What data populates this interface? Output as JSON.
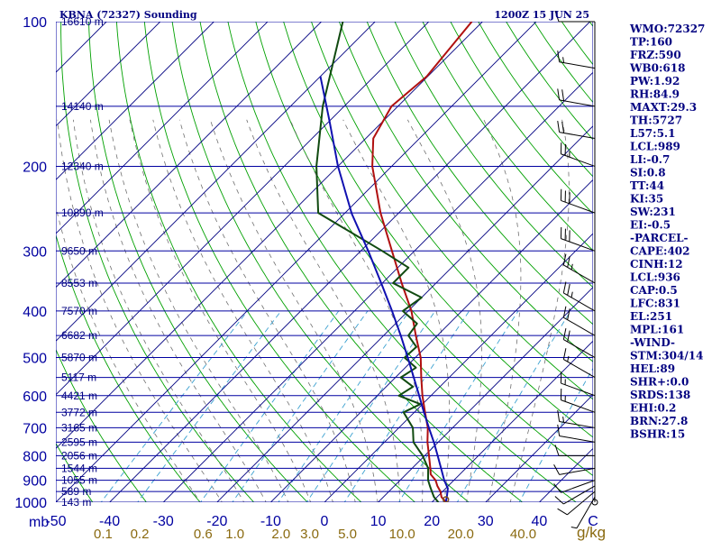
{
  "chart_data": {
    "type": "line",
    "title": "KBNA (72327) Sounding",
    "timestamp": "1200Z 15 JUN 25",
    "pressure_unit": "mb",
    "mixing_ratio_unit": "g/kg",
    "pressure_levels": [
      100,
      200,
      300,
      400,
      500,
      600,
      700,
      800,
      900,
      1000
    ],
    "height_labels": [
      {
        "p": 100,
        "label": "16610 m"
      },
      {
        "p": 150,
        "label": "14140 m"
      },
      {
        "p": 200,
        "label": "12340 m"
      },
      {
        "p": 250,
        "label": "10890 m"
      },
      {
        "p": 300,
        "label": "9650 m"
      },
      {
        "p": 350,
        "label": "8553 m"
      },
      {
        "p": 400,
        "label": "7570 m"
      },
      {
        "p": 450,
        "label": "6682 m"
      },
      {
        "p": 500,
        "label": "5870 m"
      },
      {
        "p": 550,
        "label": "5117 m"
      },
      {
        "p": 600,
        "label": "4421 m"
      },
      {
        "p": 650,
        "label": "3772 m"
      },
      {
        "p": 700,
        "label": "3165 m"
      },
      {
        "p": 750,
        "label": "2595 m"
      },
      {
        "p": 800,
        "label": "2056 m"
      },
      {
        "p": 850,
        "label": "1544 m"
      },
      {
        "p": 900,
        "label": "1055 m"
      },
      {
        "p": 950,
        "label": "589 m"
      },
      {
        "p": 1000,
        "label": "143 m"
      }
    ],
    "temperature_ticks": [
      -50,
      -40,
      -30,
      -20,
      -10,
      0,
      10,
      20,
      30,
      40,
      50
    ],
    "temperature_tick_labels": [
      "-50",
      "-40",
      "-30",
      "-20",
      "-10",
      "0",
      "10",
      "20",
      "30",
      "40",
      "C"
    ],
    "mixing_ratio_labels": [
      "0.1",
      "0.2",
      "0.6",
      "1.0",
      "2.0",
      "3.0",
      "5.0",
      "10.0",
      "20.0",
      "40.0"
    ],
    "xlim": [
      -50,
      50
    ],
    "ylim": [
      1000,
      100
    ],
    "y_scale": "log",
    "skew": true,
    "series": [
      {
        "id": "temperature",
        "color": "#b01010",
        "points": [
          [
            1000,
            22.6
          ],
          [
            975,
            20.8
          ],
          [
            950,
            19.6
          ],
          [
            925,
            18.0
          ],
          [
            900,
            16.6
          ],
          [
            875,
            14.6
          ],
          [
            850,
            13.4
          ],
          [
            800,
            10.8
          ],
          [
            750,
            8.0
          ],
          [
            700,
            5.4
          ],
          [
            650,
            2.0
          ],
          [
            600,
            -1.6
          ],
          [
            550,
            -5.2
          ],
          [
            500,
            -9.0
          ],
          [
            450,
            -14.0
          ],
          [
            400,
            -19.4
          ],
          [
            350,
            -26.4
          ],
          [
            300,
            -34.2
          ],
          [
            250,
            -43.4
          ],
          [
            200,
            -53.6
          ],
          [
            175,
            -58.6
          ],
          [
            150,
            -61.2
          ],
          [
            130,
            -60.2
          ],
          [
            100,
            -62.0
          ]
        ]
      },
      {
        "id": "dewpoint",
        "color": "#104a10",
        "points": [
          [
            1000,
            21.2
          ],
          [
            975,
            19.4
          ],
          [
            950,
            18.0
          ],
          [
            925,
            16.6
          ],
          [
            900,
            15.2
          ],
          [
            850,
            13.0
          ],
          [
            800,
            9.6
          ],
          [
            750,
            5.4
          ],
          [
            700,
            2.6
          ],
          [
            650,
            -2.0
          ],
          [
            625,
            -0.4
          ],
          [
            600,
            -6.0
          ],
          [
            575,
            -5.0
          ],
          [
            550,
            -9.0
          ],
          [
            525,
            -8.0
          ],
          [
            500,
            -12.0
          ],
          [
            475,
            -11.8
          ],
          [
            450,
            -15.4
          ],
          [
            425,
            -16.0
          ],
          [
            400,
            -21.0
          ],
          [
            375,
            -20.0
          ],
          [
            350,
            -28.0
          ],
          [
            325,
            -28.0
          ],
          [
            300,
            -36.0
          ],
          [
            250,
            -55.0
          ],
          [
            200,
            -64.0
          ],
          [
            150,
            -74.0
          ],
          [
            100,
            -86.0
          ]
        ]
      },
      {
        "id": "parcel",
        "color": "#1010b0",
        "points": [
          [
            1000,
            22.6
          ],
          [
            975,
            21.8
          ],
          [
            936,
            20.4
          ],
          [
            900,
            18.2
          ],
          [
            850,
            15.4
          ],
          [
            800,
            12.4
          ],
          [
            750,
            9.2
          ],
          [
            700,
            5.6
          ],
          [
            650,
            1.8
          ],
          [
            600,
            -2.2
          ],
          [
            550,
            -6.6
          ],
          [
            500,
            -11.4
          ],
          [
            450,
            -16.8
          ],
          [
            400,
            -23.0
          ],
          [
            350,
            -30.2
          ],
          [
            300,
            -38.6
          ],
          [
            251,
            -48.6
          ],
          [
            200,
            -60.0
          ],
          [
            161,
            -70.0
          ],
          [
            130,
            -80.0
          ]
        ]
      }
    ],
    "wind_barbs": [
      {
        "p": 1000,
        "dir": 180,
        "spd": 0
      },
      {
        "p": 975,
        "dir": 210,
        "spd": 5
      },
      {
        "p": 950,
        "dir": 230,
        "spd": 10
      },
      {
        "p": 925,
        "dir": 240,
        "spd": 10
      },
      {
        "p": 900,
        "dir": 250,
        "spd": 10
      },
      {
        "p": 850,
        "dir": 260,
        "spd": 10
      },
      {
        "p": 800,
        "dir": 270,
        "spd": 10
      },
      {
        "p": 750,
        "dir": 280,
        "spd": 10
      },
      {
        "p": 700,
        "dir": 280,
        "spd": 15
      },
      {
        "p": 650,
        "dir": 290,
        "spd": 15
      },
      {
        "p": 600,
        "dir": 290,
        "spd": 15
      },
      {
        "p": 550,
        "dir": 300,
        "spd": 15
      },
      {
        "p": 500,
        "dir": 300,
        "spd": 20
      },
      {
        "p": 450,
        "dir": 300,
        "spd": 20
      },
      {
        "p": 400,
        "dir": 300,
        "spd": 25
      },
      {
        "p": 350,
        "dir": 300,
        "spd": 25
      },
      {
        "p": 300,
        "dir": 290,
        "spd": 30
      },
      {
        "p": 250,
        "dir": 290,
        "spd": 30
      },
      {
        "p": 200,
        "dir": 290,
        "spd": 25
      },
      {
        "p": 175,
        "dir": 280,
        "spd": 20
      },
      {
        "p": 150,
        "dir": 280,
        "spd": 20
      },
      {
        "p": 125,
        "dir": 280,
        "spd": 15
      },
      {
        "p": 100,
        "dir": 270,
        "spd": 10
      }
    ],
    "grid": true
  },
  "indices": [
    "WMO:72327",
    "TP:160",
    "FRZ:590",
    "WB0:618",
    "PW:1.92",
    "RH:84.9",
    "MAXT:29.3",
    "TH:5727",
    "L57:5.1",
    "LCL:989",
    "LI:-0.7",
    "SI:0.8",
    "TT:44",
    "KI:35",
    "SW:231",
    "EI:-0.5",
    "-PARCEL-",
    "CAPE:402",
    "CINH:12",
    "LCL:936",
    "CAP:0.5",
    "LFC:831",
    "EL:251",
    "MPL:161",
    "-WIND-",
    "STM:304/14",
    "HEL:89",
    "SHR+:0.0",
    "SRDS:138",
    "EHI:0.2",
    "BRN:27.8",
    "BSHR:15"
  ],
  "colors": {
    "isobar": "#0000a0",
    "isotherm": "#000080",
    "dry_adiabat": "#00a000",
    "moist_adiabat": "#707070",
    "mixing_ratio": "#3aa0d0",
    "label_text": "#000080",
    "mixing_ratio_text": "#8a6a10",
    "axis_text": "#0000a0"
  }
}
